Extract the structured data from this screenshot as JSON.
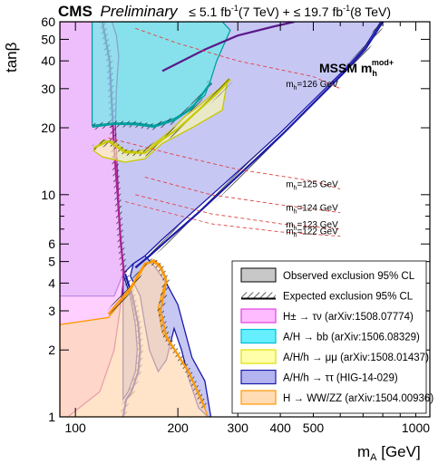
{
  "header": {
    "experiment": "CMS",
    "status": "Preliminary",
    "lumi_7": "≤ 5.1 fb",
    "lumi_7_exp": "-1",
    "lumi_7_energy": "(7 TeV) + ≤ 19.7 fb",
    "lumi_8_exp": "-1",
    "lumi_8_energy": "(8 TeV)"
  },
  "scenario": {
    "main": "MSSM m",
    "sub": "h",
    "sup": "mod+"
  },
  "chart_data": {
    "type": "area",
    "x_scale": "log",
    "y_scale": "log",
    "xlabel": "m",
    "xlabel_sub": "A",
    "xlabel_unit": " [GeV]",
    "ylabel": "tanβ",
    "xlim": [
      90,
      1100
    ],
    "ylim": [
      1,
      60
    ],
    "x_ticks": [
      100,
      200,
      300,
      400,
      500,
      1000
    ],
    "x_tick_labels": [
      "100",
      "200",
      "300",
      "400",
      "500",
      "1000"
    ],
    "y_ticks": [
      1,
      2,
      3,
      4,
      5,
      6,
      10,
      20,
      30,
      40,
      50,
      60
    ],
    "y_tick_labels": [
      "1",
      "2",
      "3",
      "4",
      "5",
      "6",
      "10",
      "20",
      "30",
      "40",
      "50",
      "60"
    ],
    "legend_position": "bottom-right",
    "legend": [
      {
        "label": "Observed exclusion 95% CL",
        "color": "#c8c8c8",
        "kind": "observed"
      },
      {
        "label": "Expected exclusion 95% CL",
        "color": "#000000",
        "kind": "expected"
      },
      {
        "label": "H± → τν (arXiv:1508.07774)",
        "color": "#e040e0",
        "fill": "#ffbbff",
        "kind": "area"
      },
      {
        "label": "A/H → bb (arXiv:1506.08329)",
        "color": "#00bcd4",
        "fill": "#66f0ff",
        "kind": "area"
      },
      {
        "label": "A/H/h → μμ (arXiv:1508.01437)",
        "color": "#e0e000",
        "fill": "#ffffaa",
        "kind": "area"
      },
      {
        "label": "A/H/h → ττ (HIG-14-029)",
        "color": "#1a1aaa",
        "fill": "#b4b4f0",
        "kind": "area"
      },
      {
        "label": "H → WW/ZZ (arXiv:1504.00936)",
        "color": "#ff9900",
        "fill": "#ffdcb4",
        "kind": "area"
      }
    ],
    "mh_contours": [
      {
        "label": "m",
        "sub": "h",
        "value": "=126 GeV",
        "points": [
          [
            150,
            56
          ],
          [
            200,
            48
          ],
          [
            300,
            40
          ],
          [
            500,
            34
          ],
          [
            600,
            30
          ]
        ]
      },
      {
        "label": "m",
        "sub": "h",
        "value": "=125 GeV",
        "points": [
          [
            125,
            18
          ],
          [
            200,
            15
          ],
          [
            300,
            13
          ],
          [
            500,
            11.5
          ],
          [
            600,
            10.6
          ]
        ]
      },
      {
        "label": "m",
        "sub": "h",
        "value": "=124 GeV",
        "points": [
          [
            160,
            12
          ],
          [
            250,
            10
          ],
          [
            400,
            9
          ],
          [
            600,
            8.3
          ]
        ]
      },
      {
        "label": "m",
        "sub": "h",
        "value": "=123 GeV",
        "points": [
          [
            150,
            10
          ],
          [
            250,
            8.2
          ],
          [
            400,
            7.4
          ],
          [
            600,
            7
          ]
        ]
      },
      {
        "label": "m",
        "sub": "h",
        "value": "=122 GeV",
        "points": [
          [
            140,
            9.3
          ],
          [
            250,
            7.4
          ],
          [
            400,
            6.8
          ],
          [
            600,
            6.5
          ]
        ]
      }
    ],
    "regions": [
      {
        "name": "A/H/h → ττ",
        "observed": [
          [
            90,
            60
          ],
          [
            110,
            60
          ],
          [
            200,
            60
          ],
          [
            400,
            60
          ],
          [
            600,
            60
          ],
          [
            790,
            60
          ],
          [
            700,
            45
          ],
          [
            600,
            35
          ],
          [
            480,
            25
          ],
          [
            400,
            19
          ],
          [
            330,
            14.5
          ],
          [
            270,
            11
          ],
          [
            220,
            8.3
          ],
          [
            180,
            6.3
          ],
          [
            160,
            5.3
          ],
          [
            148,
            4.9
          ],
          [
            145,
            4.3
          ],
          [
            155,
            3.5
          ],
          [
            160,
            2.6
          ],
          [
            165,
            2.0
          ],
          [
            175,
            1.6
          ],
          [
            185,
            1.8
          ],
          [
            195,
            2.5
          ],
          [
            205,
            2.0
          ],
          [
            215,
            1.5
          ],
          [
            230,
            1.1
          ],
          [
            245,
            1.0
          ],
          [
            250,
            1.0
          ],
          [
            240,
            1.45
          ],
          [
            220,
            1.85
          ],
          [
            200,
            3.2
          ],
          [
            185,
            4.0
          ],
          [
            170,
            4.8
          ],
          [
            160,
            5.3
          ],
          [
            148,
            4.9
          ],
          [
            138,
            4.4
          ],
          [
            130,
            3.5
          ],
          [
            90,
            3.5
          ]
        ],
        "expected": [
          [
            800,
            60
          ],
          [
            710,
            45
          ],
          [
            610,
            35
          ],
          [
            490,
            25
          ],
          [
            410,
            19
          ],
          [
            340,
            14.5
          ],
          [
            280,
            11
          ],
          [
            230,
            8.3
          ],
          [
            185,
            6.2
          ],
          [
            165,
            5.3
          ],
          [
            150,
            4.7
          ]
        ]
      },
      {
        "name": "A/H/h → ττ low-mass lobe",
        "observed": [
          [
            138,
            4.4
          ],
          [
            145,
            3.5
          ],
          [
            150,
            2.6
          ],
          [
            152,
            2.0
          ],
          [
            150,
            1.6
          ],
          [
            143,
            1.3
          ],
          [
            138,
            1.2
          ]
        ],
        "expected": [
          [
            140,
            4.4
          ],
          [
            147,
            3.5
          ],
          [
            153,
            2.6
          ],
          [
            155,
            2.0
          ],
          [
            153,
            1.6
          ],
          [
            146,
            1.3
          ],
          [
            141,
            1.2
          ],
          [
            138,
            1.0
          ]
        ]
      },
      {
        "name": "H± → τν",
        "observed": [
          [
            90,
            60
          ],
          [
            128,
            60
          ],
          [
            132,
            52
          ],
          [
            134,
            42
          ],
          [
            132,
            30
          ],
          [
            131,
            20
          ],
          [
            133,
            12
          ],
          [
            135,
            7
          ],
          [
            138,
            5
          ],
          [
            138,
            4
          ],
          [
            135,
            3
          ],
          [
            130,
            2
          ],
          [
            118,
            1.3
          ],
          [
            95,
            1.0
          ],
          [
            90,
            1.0
          ]
        ],
        "expected": [
          [
            120,
            60
          ],
          [
            126,
            40
          ],
          [
            128,
            25
          ],
          [
            130,
            16
          ],
          [
            133,
            10
          ],
          [
            136,
            6
          ],
          [
            139,
            4.4
          ]
        ]
      },
      {
        "name": "A/H → bb",
        "observed": [
          [
            112,
            60
          ],
          [
            270,
            60
          ],
          [
            285,
            55
          ],
          [
            260,
            40
          ],
          [
            250,
            33
          ],
          [
            240,
            28
          ],
          [
            220,
            25
          ],
          [
            210,
            23.5
          ],
          [
            195,
            22
          ],
          [
            170,
            20.5
          ],
          [
            150,
            21
          ],
          [
            130,
            21
          ],
          [
            112,
            20.5
          ]
        ],
        "expected": [
          [
            112,
            20.2
          ],
          [
            130,
            20.8
          ],
          [
            150,
            20.7
          ],
          [
            170,
            20.2
          ],
          [
            195,
            21.6
          ],
          [
            220,
            24.5
          ],
          [
            250,
            32
          ]
        ]
      },
      {
        "name": "A/H/h → μμ",
        "observed": [
          [
            113,
            15.8
          ],
          [
            120,
            17.5
          ],
          [
            130,
            17.3
          ],
          [
            140,
            15.8
          ],
          [
            150,
            15.6
          ],
          [
            160,
            15.9
          ],
          [
            175,
            17.5
          ],
          [
            190,
            19.4
          ],
          [
            210,
            22.5
          ],
          [
            230,
            25
          ],
          [
            250,
            28
          ],
          [
            265,
            30
          ],
          [
            280,
            33
          ],
          [
            270,
            24
          ],
          [
            245,
            22
          ],
          [
            220,
            20
          ],
          [
            200,
            18.5
          ],
          [
            180,
            17
          ],
          [
            160,
            14.5
          ],
          [
            140,
            14
          ],
          [
            120,
            14.8
          ]
        ],
        "expected": [
          [
            113,
            16.2
          ],
          [
            125,
            17.4
          ],
          [
            140,
            15.5
          ],
          [
            160,
            15.4
          ],
          [
            180,
            17.7
          ],
          [
            200,
            19.8
          ],
          [
            230,
            24
          ],
          [
            260,
            28.5
          ],
          [
            285,
            33
          ]
        ]
      },
      {
        "name": "H → WW/ZZ",
        "observed": [
          [
            90,
            1.0
          ],
          [
            90,
            2.6
          ],
          [
            125,
            2.8
          ],
          [
            145,
            3.7
          ],
          [
            160,
            4.8
          ],
          [
            170,
            5.1
          ],
          [
            178,
            4.8
          ],
          [
            185,
            4.2
          ],
          [
            175,
            3.1
          ],
          [
            180,
            2.4
          ],
          [
            210,
            1.7
          ],
          [
            235,
            1.2
          ],
          [
            245,
            1.0
          ]
        ],
        "expected": [
          [
            125,
            2.9
          ],
          [
            145,
            3.8
          ],
          [
            160,
            4.9
          ],
          [
            170,
            5.0
          ],
          [
            178,
            4.7
          ],
          [
            185,
            4.1
          ],
          [
            178,
            3.0
          ],
          [
            185,
            2.3
          ],
          [
            215,
            1.6
          ],
          [
            240,
            1.1
          ]
        ]
      }
    ],
    "mhmax_curve": [
      [
        180,
        36
      ],
      [
        240,
        45
      ],
      [
        300,
        52
      ],
      [
        380,
        57
      ],
      [
        440,
        60
      ]
    ]
  },
  "colors": {
    "tautau_fill": "#b4b4f0",
    "tautau_line": "#1a1aaa",
    "hpm_fill": "#ffbbff",
    "hpm_line": "#b0209a",
    "bb_fill": "#66f0e8",
    "bb_line": "#00a0a0",
    "mumu_fill": "#ffffaa",
    "mumu_line": "#c8c800",
    "wwzz_fill": "#ffd8b4",
    "wwzz_line": "#ff9900",
    "mh_line": "#e04040"
  }
}
